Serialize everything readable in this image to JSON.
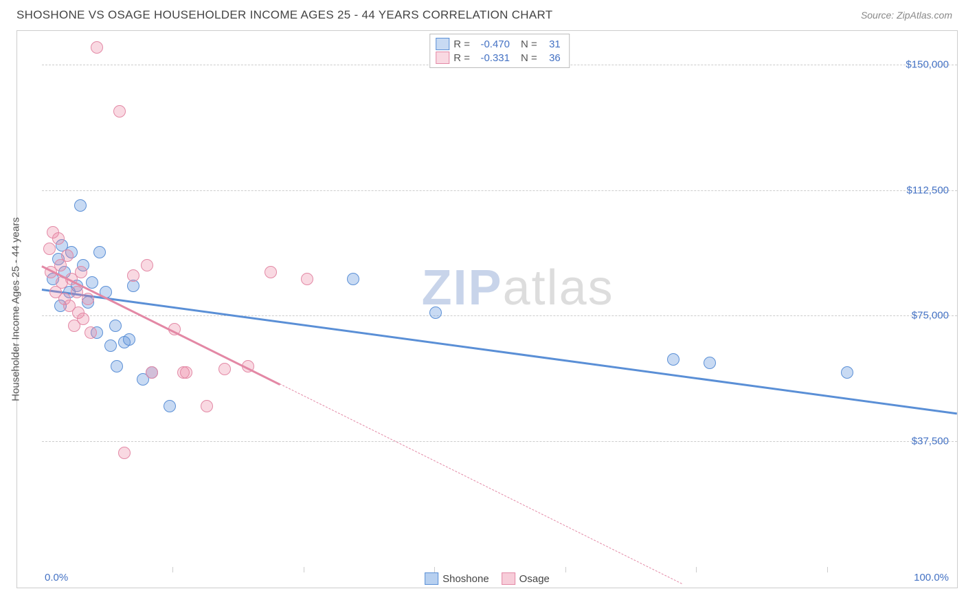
{
  "header": {
    "title": "SHOSHONE VS OSAGE HOUSEHOLDER INCOME AGES 25 - 44 YEARS CORRELATION CHART",
    "source": "Source: ZipAtlas.com"
  },
  "chart": {
    "type": "scatter",
    "ylabel": "Householder Income Ages 25 - 44 years",
    "xlim": [
      0,
      100
    ],
    "ylim": [
      0,
      160000
    ],
    "y_ticks": [
      37500,
      75000,
      112500,
      150000
    ],
    "y_tick_labels": [
      "$37,500",
      "$75,000",
      "$112,500",
      "$150,000"
    ],
    "x_grid_positions": [
      14.3,
      28.6,
      42.9,
      57.2,
      71.5,
      85.8
    ],
    "x_label_min": "0.0%",
    "x_label_max": "100.0%",
    "background_color": "#ffffff",
    "grid_color": "#cccccc",
    "axis_border_color": "#cccccc",
    "point_radius": 9,
    "series": [
      {
        "name": "Shoshone",
        "fill_color": "rgba(96,150,221,0.35)",
        "stroke_color": "#5a8fd6",
        "r": "-0.470",
        "n": "31",
        "trend": {
          "x1": 0,
          "y1": 83000,
          "x2": 100,
          "y2": 46000,
          "solid_end_x": 100
        },
        "points": [
          [
            1.2,
            86000
          ],
          [
            1.8,
            92000
          ],
          [
            2.0,
            78000
          ],
          [
            2.2,
            96000
          ],
          [
            2.5,
            88000
          ],
          [
            3.0,
            82000
          ],
          [
            3.2,
            94000
          ],
          [
            3.8,
            84000
          ],
          [
            4.2,
            108000
          ],
          [
            4.5,
            90000
          ],
          [
            5.0,
            79000
          ],
          [
            5.5,
            85000
          ],
          [
            6.0,
            70000
          ],
          [
            6.3,
            94000
          ],
          [
            7.0,
            82000
          ],
          [
            7.5,
            66000
          ],
          [
            8.0,
            72000
          ],
          [
            8.2,
            60000
          ],
          [
            9.0,
            67000
          ],
          [
            9.5,
            68000
          ],
          [
            10.0,
            84000
          ],
          [
            11.0,
            56000
          ],
          [
            12.0,
            58000
          ],
          [
            14.0,
            48000
          ],
          [
            34.0,
            86000
          ],
          [
            43.0,
            76000
          ],
          [
            69.0,
            62000
          ],
          [
            73.0,
            61000
          ],
          [
            88.0,
            58000
          ]
        ]
      },
      {
        "name": "Osage",
        "fill_color": "rgba(235,130,160,0.30)",
        "stroke_color": "#e388a5",
        "r": "-0.331",
        "n": "36",
        "trend": {
          "x1": 0,
          "y1": 90000,
          "x2": 70,
          "y2": -5000,
          "solid_end_x": 26
        },
        "points": [
          [
            0.8,
            95000
          ],
          [
            1.0,
            88000
          ],
          [
            1.2,
            100000
          ],
          [
            1.5,
            82000
          ],
          [
            1.8,
            98000
          ],
          [
            2.0,
            90000
          ],
          [
            2.2,
            85000
          ],
          [
            2.5,
            80000
          ],
          [
            2.8,
            93000
          ],
          [
            3.0,
            78000
          ],
          [
            3.2,
            86000
          ],
          [
            3.5,
            72000
          ],
          [
            3.8,
            82000
          ],
          [
            4.0,
            76000
          ],
          [
            4.3,
            88000
          ],
          [
            4.5,
            74000
          ],
          [
            5.0,
            80000
          ],
          [
            5.3,
            70000
          ],
          [
            6.0,
            155000
          ],
          [
            8.5,
            136000
          ],
          [
            9.0,
            34000
          ],
          [
            10.0,
            87000
          ],
          [
            11.5,
            90000
          ],
          [
            12.0,
            58000
          ],
          [
            14.5,
            71000
          ],
          [
            15.5,
            58000
          ],
          [
            15.8,
            58000
          ],
          [
            18.0,
            48000
          ],
          [
            20.0,
            59000
          ],
          [
            22.5,
            60000
          ],
          [
            25.0,
            88000
          ],
          [
            29.0,
            86000
          ]
        ]
      }
    ],
    "legend_bottom": [
      {
        "label": "Shoshone",
        "fill": "rgba(96,150,221,0.45)",
        "stroke": "#5a8fd6"
      },
      {
        "label": "Osage",
        "fill": "rgba(235,130,160,0.40)",
        "stroke": "#e388a5"
      }
    ],
    "watermark": {
      "part1": "ZIP",
      "part2": "atlas"
    }
  }
}
